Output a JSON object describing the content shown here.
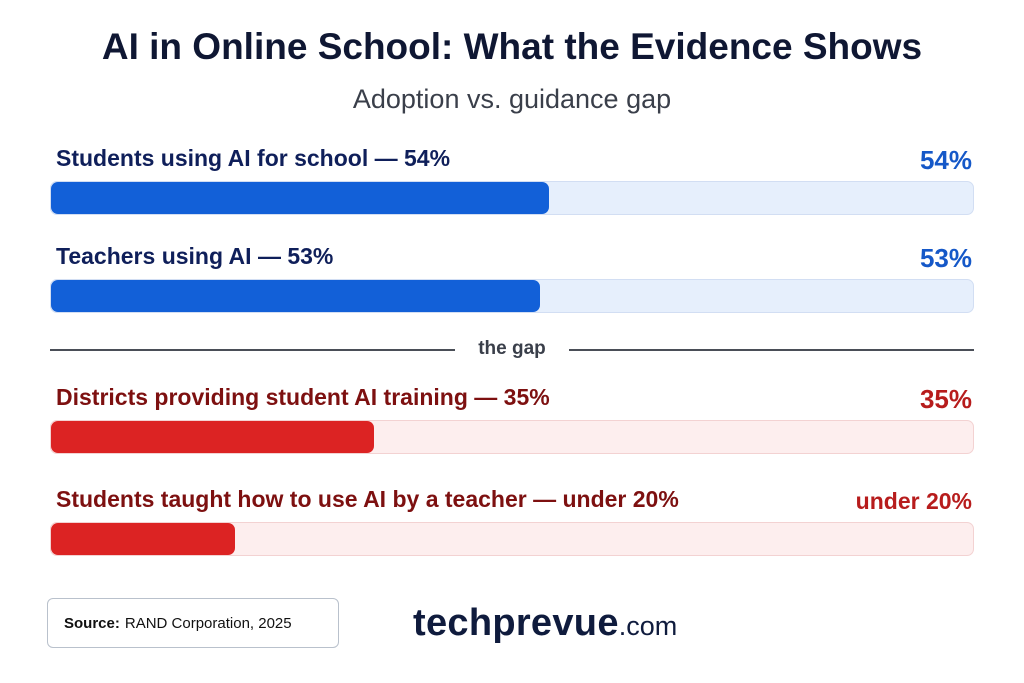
{
  "chart_data": {
    "type": "bar",
    "orientation": "horizontal",
    "title": "AI in Online School: What the Evidence Shows",
    "subtitle": "Adoption vs. guidance gap",
    "xlim": [
      0,
      100
    ],
    "divider_label": "the gap",
    "bars": [
      {
        "label": "Students using AI for school — 54%",
        "value": 54,
        "value_label": "54%",
        "group": "adoption",
        "color": "#1260d8"
      },
      {
        "label": "Teachers using AI — 53%",
        "value": 53,
        "value_label": "53%",
        "group": "adoption",
        "color": "#1260d8"
      },
      {
        "label": "Districts providing student AI training — 35%",
        "value": 35,
        "value_label": "35%",
        "group": "guidance",
        "color": "#dc2323"
      },
      {
        "label": "Students taught how to use AI by a teacher — under 20%",
        "value": 20,
        "value_label": "under 20%",
        "group": "guidance",
        "color": "#dc2323"
      }
    ]
  },
  "footer": {
    "source_label": "Source:",
    "source_text": "RAND Corporation, 2025",
    "brand_main": "techprevue",
    "brand_tld": ".com"
  }
}
